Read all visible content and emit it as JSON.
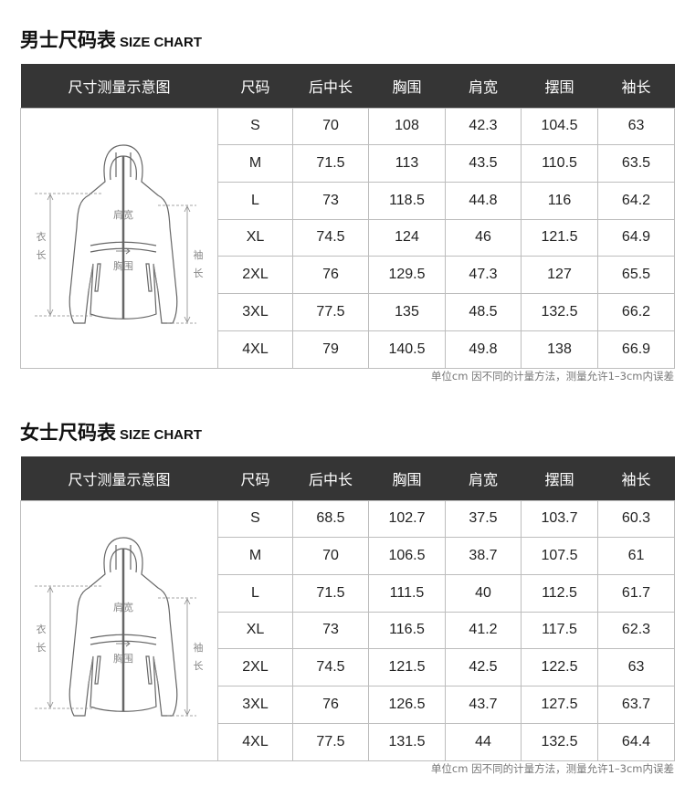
{
  "men": {
    "title_cn": "男士尺码表",
    "title_en": "SIZE CHART",
    "headers": [
      "尺寸测量示意图",
      "尺码",
      "后中长",
      "胸围",
      "肩宽",
      "摆围",
      "袖长"
    ],
    "diagram_labels": {
      "shoulder": "肩宽",
      "chest": "胸围",
      "length_1": "衣",
      "length_2": "长",
      "sleeve_1": "袖",
      "sleeve_2": "长"
    },
    "rows": [
      [
        "S",
        "70",
        "108",
        "42.3",
        "104.5",
        "63"
      ],
      [
        "M",
        "71.5",
        "113",
        "43.5",
        "110.5",
        "63.5"
      ],
      [
        "L",
        "73",
        "118.5",
        "44.8",
        "116",
        "64.2"
      ],
      [
        "XL",
        "74.5",
        "124",
        "46",
        "121.5",
        "64.9"
      ],
      [
        "2XL",
        "76",
        "129.5",
        "47.3",
        "127",
        "65.5"
      ],
      [
        "3XL",
        "77.5",
        "135",
        "48.5",
        "132.5",
        "66.2"
      ],
      [
        "4XL",
        "79",
        "140.5",
        "49.8",
        "138",
        "66.9"
      ]
    ],
    "note": "单位cm  因不同的计量方法，测量允许1–3cm内误差"
  },
  "women": {
    "title_cn": "女士尺码表",
    "title_en": "SIZE CHART",
    "headers": [
      "尺寸测量示意图",
      "尺码",
      "后中长",
      "胸围",
      "肩宽",
      "摆围",
      "袖长"
    ],
    "diagram_labels": {
      "shoulder": "肩宽",
      "chest": "胸围",
      "length_1": "衣",
      "length_2": "长",
      "sleeve_1": "袖",
      "sleeve_2": "长"
    },
    "rows": [
      [
        "S",
        "68.5",
        "102.7",
        "37.5",
        "103.7",
        "60.3"
      ],
      [
        "M",
        "70",
        "106.5",
        "38.7",
        "107.5",
        "61"
      ],
      [
        "L",
        "71.5",
        "111.5",
        "40",
        "112.5",
        "61.7"
      ],
      [
        "XL",
        "73",
        "116.5",
        "41.2",
        "117.5",
        "62.3"
      ],
      [
        "2XL",
        "74.5",
        "121.5",
        "42.5",
        "122.5",
        "63"
      ],
      [
        "3XL",
        "76",
        "126.5",
        "43.7",
        "127.5",
        "63.7"
      ],
      [
        "4XL",
        "77.5",
        "131.5",
        "44",
        "132.5",
        "64.4"
      ]
    ],
    "note": "单位cm  因不同的计量方法，测量允许1–3cm内误差"
  }
}
